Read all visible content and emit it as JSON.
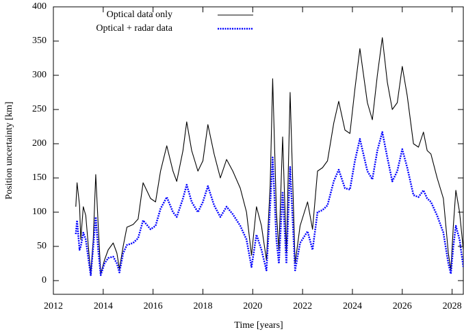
{
  "chart_data": {
    "type": "line",
    "x_label": "Time [years]",
    "y_label": "Position uncertainty [km]",
    "xlim": [
      2012,
      2028.45
    ],
    "xticks": [
      2012,
      2014,
      2016,
      2018,
      2020,
      2022,
      2024,
      2026,
      2028
    ],
    "ylim": [
      -20,
      400
    ],
    "yticks": [
      0,
      50,
      100,
      150,
      200,
      250,
      300,
      350,
      400
    ],
    "grid": false,
    "legend": "top-left",
    "x": [
      2012.9,
      2012.95,
      2013.05,
      2013.1,
      2013.2,
      2013.3,
      2013.45,
      2013.5,
      2013.6,
      2013.7,
      2013.8,
      2013.9,
      2014.05,
      2014.2,
      2014.4,
      2014.55,
      2014.65,
      2014.8,
      2014.95,
      2015.2,
      2015.4,
      2015.6,
      2015.9,
      2016.1,
      2016.3,
      2016.55,
      2016.8,
      2016.95,
      2017.2,
      2017.35,
      2017.55,
      2017.8,
      2018,
      2018.2,
      2018.45,
      2018.7,
      2018.95,
      2019.2,
      2019.5,
      2019.75,
      2019.95,
      2020.15,
      2020.35,
      2020.55,
      2020.7,
      2020.8,
      2020.95,
      2021.05,
      2021.2,
      2021.35,
      2021.5,
      2021.7,
      2021.9,
      2022.2,
      2022.4,
      2022.6,
      2022.8,
      2023,
      2023.25,
      2023.45,
      2023.7,
      2023.9,
      2024.1,
      2024.3,
      2024.6,
      2024.8,
      2025,
      2025.2,
      2025.4,
      2025.6,
      2025.8,
      2026,
      2026.2,
      2026.45,
      2026.65,
      2026.85,
      2027,
      2027.15,
      2027.4,
      2027.65,
      2027.85,
      2027.95,
      2028.05,
      2028.15,
      2028.3,
      2028.45
    ],
    "series": [
      {
        "name": "Optical data only",
        "color": "#000000",
        "style": "solid",
        "values": [
          108,
          143,
          110,
          60,
          108,
          95,
          30,
          10,
          60,
          155,
          80,
          10,
          30,
          45,
          55,
          40,
          17,
          50,
          78,
          82,
          90,
          143,
          120,
          115,
          160,
          197,
          160,
          145,
          190,
          232,
          190,
          160,
          175,
          228,
          185,
          150,
          177,
          160,
          135,
          100,
          37,
          108,
          80,
          30,
          140,
          295,
          100,
          45,
          210,
          40,
          275,
          25,
          80,
          115,
          75,
          160,
          165,
          175,
          230,
          262,
          220,
          215,
          280,
          339,
          260,
          235,
          300,
          355,
          290,
          250,
          260,
          313,
          270,
          200,
          195,
          217,
          190,
          185,
          150,
          120,
          40,
          15,
          80,
          132,
          100,
          45
        ]
      },
      {
        "name": "Optical + radar data",
        "color": "#0000ff",
        "style": "dotted",
        "values": [
          68,
          88,
          45,
          50,
          70,
          60,
          20,
          8,
          50,
          93,
          45,
          8,
          25,
          33,
          35,
          25,
          12,
          40,
          52,
          55,
          62,
          88,
          75,
          80,
          105,
          122,
          100,
          93,
          120,
          140,
          115,
          100,
          115,
          138,
          110,
          93,
          108,
          97,
          80,
          60,
          20,
          67,
          45,
          15,
          110,
          180,
          60,
          25,
          130,
          25,
          166,
          15,
          55,
          72,
          45,
          100,
          103,
          110,
          145,
          162,
          135,
          133,
          175,
          207,
          160,
          148,
          190,
          217,
          180,
          145,
          160,
          192,
          165,
          125,
          122,
          132,
          120,
          115,
          95,
          70,
          25,
          10,
          50,
          80,
          60,
          20
        ]
      }
    ]
  }
}
